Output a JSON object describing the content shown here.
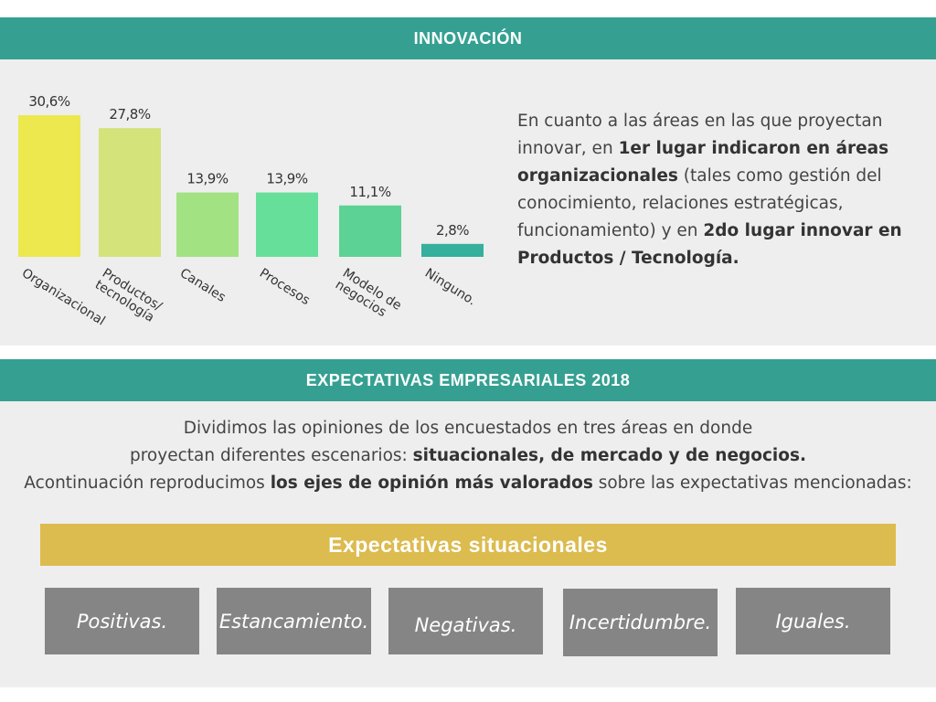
{
  "innovacion": {
    "title": "INNOVACIÓN",
    "text": {
      "p1": "En cuanto a las áreas en las que proyectan innovar, en ",
      "b1": "1er lugar indicaron en áreas organizacionales",
      "p2": " (tales como gestión del conocimiento, relaciones estratégicas, funcionamiento) y en ",
      "b2": "2do lugar innovar en Productos / Tecnología."
    }
  },
  "chart_data": {
    "type": "bar",
    "categories": [
      "Organizacional",
      "Productos/ tecnología",
      "Canales",
      "Procesos",
      "Modelo de negocios",
      "Ninguno."
    ],
    "category_lines": [
      [
        "Organizacional"
      ],
      [
        "Productos/",
        "tecnología"
      ],
      [
        "Canales"
      ],
      [
        "Procesos"
      ],
      [
        "Modelo de",
        "negocios"
      ],
      [
        "Ninguno."
      ]
    ],
    "values": [
      30.6,
      27.8,
      13.9,
      13.9,
      11.1,
      2.8
    ],
    "value_labels": [
      "30,6%",
      "27,8%",
      "13,9%",
      "13,9%",
      "11,1%",
      "2,8%"
    ],
    "colors": [
      "#ece84e",
      "#d4e37a",
      "#a2e282",
      "#66df9a",
      "#5cd295",
      "#35b09c"
    ],
    "ylim": [
      0,
      30.6
    ],
    "grid": false,
    "legend": "none"
  },
  "expectativas": {
    "title": "EXPECTATIVAS EMPRESARIALES 2018",
    "intro": {
      "l1": "Dividimos las opiniones de los encuestados en tres áreas en donde",
      "l2a": "proyectan diferentes escenarios: ",
      "l2b": "situacionales, de mercado y de negocios.",
      "l3a": "Acontinuación reproducimos ",
      "l3b": "los ejes de opinión más valorados",
      "l3c": " sobre las expectativas mencionadas:"
    },
    "section_title": "Expectativas situacionales",
    "items": [
      "Positivas.",
      "Estancamiento.",
      "Negativas.",
      "Incertidumbre.",
      "Iguales."
    ]
  }
}
